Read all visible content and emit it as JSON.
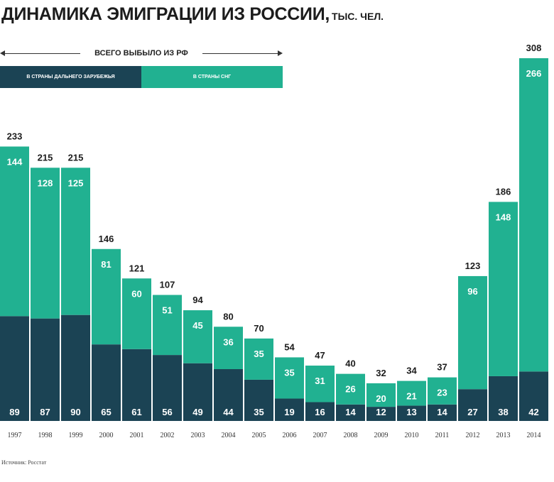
{
  "title": "ДИНАМИКА ЭМИГРАЦИИ ИЗ РОССИИ,",
  "title_unit": "ТЫС. ЧЕЛ.",
  "total_label": "ВСЕГО ВЫБЫЛО ИЗ РФ",
  "source": "Источник: Росстат",
  "colors": {
    "far_abroad": "#1b4354",
    "cis": "#21b191",
    "text_dark": "#1c1c1c",
    "text_light": "#ffffff"
  },
  "chart_data": {
    "type": "bar",
    "stacked": true,
    "title": "ДИНАМИКА ЭМИГРАЦИИ ИЗ РОССИИ, ТЫС. ЧЕЛ.",
    "xlabel": "",
    "ylabel": "",
    "categories": [
      "1997",
      "1998",
      "1999",
      "2000",
      "2001",
      "2002",
      "2003",
      "2004",
      "2005",
      "2006",
      "2007",
      "2008",
      "2009",
      "2010",
      "2011",
      "2012",
      "2013",
      "2014"
    ],
    "series": [
      {
        "name": "В СТРАНЫ ДАЛЬНЕГО ЗАРУБЕЖЬЯ",
        "values": [
          89,
          87,
          90,
          65,
          61,
          56,
          49,
          44,
          35,
          19,
          16,
          14,
          12,
          13,
          14,
          27,
          38,
          42
        ]
      },
      {
        "name": "В СТРАНЫ СНГ",
        "values": [
          144,
          128,
          125,
          81,
          60,
          51,
          45,
          36,
          35,
          35,
          31,
          26,
          20,
          21,
          23,
          96,
          148,
          266
        ]
      }
    ],
    "totals_label": "ВСЕГО ВЫБЫЛО ИЗ РФ",
    "totals": [
      233,
      215,
      215,
      146,
      121,
      107,
      94,
      80,
      70,
      54,
      47,
      40,
      32,
      34,
      37,
      123,
      186,
      308
    ],
    "ylim": [
      0,
      308
    ],
    "grid": false,
    "legend_position": "top-left"
  }
}
